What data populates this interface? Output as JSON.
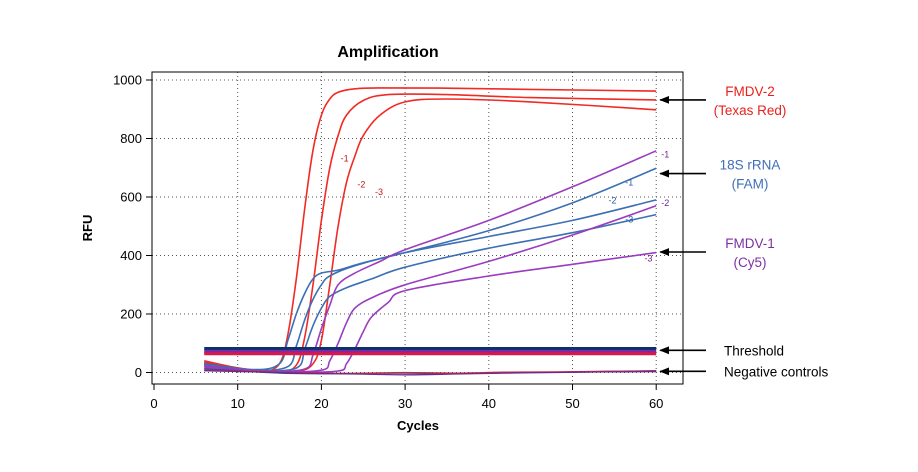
{
  "chart_data": {
    "type": "line",
    "title": "Amplification",
    "xlabel": "Cycles",
    "ylabel": "RFU",
    "xlim": [
      0,
      62
    ],
    "ylim": [
      -40,
      1030
    ],
    "xticks": [
      0,
      10,
      20,
      30,
      40,
      50,
      60
    ],
    "yticks": [
      0,
      200,
      400,
      600,
      800,
      1000
    ],
    "grid": true,
    "series": [
      {
        "name": "FMDV-2 -1",
        "group": "fmdv2",
        "label": "-1",
        "label_at": [
          22.3,
          722
        ],
        "points": [
          [
            6,
            40
          ],
          [
            10,
            15
          ],
          [
            13,
            3
          ],
          [
            15,
            30
          ],
          [
            16,
            130
          ],
          [
            17,
            320
          ],
          [
            18,
            560
          ],
          [
            19,
            760
          ],
          [
            20,
            880
          ],
          [
            21,
            935
          ],
          [
            22,
            958
          ],
          [
            24,
            970
          ],
          [
            27,
            973
          ],
          [
            35,
            972
          ],
          [
            45,
            968
          ],
          [
            60,
            962
          ]
        ]
      },
      {
        "name": "FMDV-2 -2",
        "group": "fmdv2",
        "label": "-2",
        "label_at": [
          24.3,
          632
        ],
        "points": [
          [
            6,
            32
          ],
          [
            11,
            10
          ],
          [
            15,
            2
          ],
          [
            17,
            25
          ],
          [
            18,
            120
          ],
          [
            19,
            300
          ],
          [
            20,
            520
          ],
          [
            21,
            700
          ],
          [
            22,
            810
          ],
          [
            23,
            880
          ],
          [
            25,
            930
          ],
          [
            28,
            950
          ],
          [
            35,
            950
          ],
          [
            45,
            940
          ],
          [
            60,
            932
          ]
        ]
      },
      {
        "name": "FMDV-2 -3",
        "group": "fmdv2",
        "label": "-3",
        "label_at": [
          26.4,
          607
        ],
        "points": [
          [
            6,
            35
          ],
          [
            12,
            8
          ],
          [
            17,
            4
          ],
          [
            19,
            30
          ],
          [
            20,
            110
          ],
          [
            21,
            300
          ],
          [
            22,
            500
          ],
          [
            23,
            650
          ],
          [
            24,
            740
          ],
          [
            25,
            810
          ],
          [
            27,
            880
          ],
          [
            30,
            925
          ],
          [
            35,
            935
          ],
          [
            45,
            925
          ],
          [
            60,
            898
          ]
        ]
      },
      {
        "name": "18S rRNA -1",
        "group": "18s",
        "label": "-1",
        "label_at": [
          56.3,
          640
        ],
        "points": [
          [
            6,
            30
          ],
          [
            12,
            10
          ],
          [
            15,
            30
          ],
          [
            16,
            110
          ],
          [
            17,
            200
          ],
          [
            18,
            270
          ],
          [
            19,
            320
          ],
          [
            20,
            340
          ],
          [
            22,
            350
          ],
          [
            25,
            375
          ],
          [
            30,
            410
          ],
          [
            40,
            485
          ],
          [
            50,
            580
          ],
          [
            60,
            698
          ]
        ]
      },
      {
        "name": "18S rRNA -2",
        "group": "18s",
        "label": "-2",
        "label_at": [
          54.3,
          578
        ],
        "points": [
          [
            6,
            28
          ],
          [
            12,
            8
          ],
          [
            16,
            20
          ],
          [
            17,
            90
          ],
          [
            18,
            180
          ],
          [
            19,
            250
          ],
          [
            20,
            300
          ],
          [
            21,
            330
          ],
          [
            24,
            365
          ],
          [
            30,
            410
          ],
          [
            40,
            465
          ],
          [
            50,
            520
          ],
          [
            60,
            590
          ]
        ]
      },
      {
        "name": "18S rRNA -3",
        "group": "18s",
        "label": "-3",
        "label_at": [
          56.3,
          512
        ],
        "points": [
          [
            6,
            25
          ],
          [
            12,
            6
          ],
          [
            17,
            15
          ],
          [
            18,
            80
          ],
          [
            19,
            160
          ],
          [
            20,
            220
          ],
          [
            21,
            260
          ],
          [
            23,
            290
          ],
          [
            26,
            320
          ],
          [
            30,
            360
          ],
          [
            40,
            425
          ],
          [
            50,
            478
          ],
          [
            60,
            540
          ]
        ]
      },
      {
        "name": "FMDV-1 -1",
        "group": "fmdv1",
        "label": "-1",
        "label_at": [
          60.6,
          735
        ],
        "points": [
          [
            6,
            22
          ],
          [
            13,
            4
          ],
          [
            18,
            12
          ],
          [
            19,
            60
          ],
          [
            20,
            150
          ],
          [
            21,
            230
          ],
          [
            22,
            300
          ],
          [
            24,
            340
          ],
          [
            27,
            380
          ],
          [
            30,
            420
          ],
          [
            40,
            520
          ],
          [
            50,
            635
          ],
          [
            60,
            758
          ]
        ]
      },
      {
        "name": "FMDV-1 -2",
        "group": "fmdv1",
        "label": "-2",
        "label_at": [
          60.6,
          570
        ],
        "points": [
          [
            6,
            20
          ],
          [
            14,
            3
          ],
          [
            20,
            8
          ],
          [
            21,
            40
          ],
          [
            22,
            100
          ],
          [
            23,
            170
          ],
          [
            24,
            220
          ],
          [
            26,
            255
          ],
          [
            30,
            300
          ],
          [
            40,
            380
          ],
          [
            50,
            470
          ],
          [
            60,
            570
          ]
        ]
      },
      {
        "name": "FMDV-1 -3",
        "group": "fmdv1",
        "label": "-3",
        "label_at": [
          58.6,
          380
        ],
        "points": [
          [
            6,
            15
          ],
          [
            16,
            2
          ],
          [
            22,
            5
          ],
          [
            23,
            30
          ],
          [
            24,
            80
          ],
          [
            25,
            140
          ],
          [
            26,
            190
          ],
          [
            28,
            240
          ],
          [
            30,
            280
          ],
          [
            40,
            330
          ],
          [
            50,
            370
          ],
          [
            60,
            410
          ]
        ]
      },
      {
        "name": "Threshold 18S",
        "group": "threshold_blue",
        "points": [
          [
            6,
            82
          ],
          [
            60,
            82
          ]
        ]
      },
      {
        "name": "Threshold FMDV-1",
        "group": "threshold_purple",
        "points": [
          [
            6,
            72
          ],
          [
            60,
            72
          ]
        ]
      },
      {
        "name": "Threshold FMDV-2",
        "group": "threshold_red",
        "points": [
          [
            6,
            64
          ],
          [
            60,
            64
          ]
        ]
      },
      {
        "name": "Negative control 1",
        "group": "neg_blue",
        "points": [
          [
            6,
            12
          ],
          [
            10,
            6
          ],
          [
            15,
            -2
          ],
          [
            20,
            -4
          ],
          [
            25,
            -3
          ],
          [
            30,
            -2
          ],
          [
            35,
            -4
          ],
          [
            40,
            -2
          ],
          [
            45,
            0
          ],
          [
            50,
            1
          ],
          [
            55,
            4
          ],
          [
            60,
            6
          ]
        ]
      },
      {
        "name": "Negative control 2",
        "group": "neg_red",
        "points": [
          [
            6,
            8
          ],
          [
            12,
            4
          ],
          [
            18,
            -1
          ],
          [
            24,
            -3
          ],
          [
            30,
            0
          ],
          [
            36,
            -2
          ],
          [
            42,
            1
          ],
          [
            48,
            2
          ],
          [
            54,
            4
          ],
          [
            60,
            5
          ]
        ]
      },
      {
        "name": "Negative control 3",
        "group": "neg_purple",
        "points": [
          [
            6,
            6
          ],
          [
            12,
            2
          ],
          [
            18,
            -3
          ],
          [
            24,
            -5
          ],
          [
            30,
            -8
          ],
          [
            36,
            -5
          ],
          [
            42,
            -2
          ],
          [
            48,
            0
          ],
          [
            54,
            2
          ],
          [
            60,
            3
          ]
        ]
      }
    ],
    "annotations": [
      {
        "id": "fmdv2",
        "lines": [
          "FMDV-2",
          "(Texas Red)"
        ],
        "color": "#e8211d",
        "target": [
          60,
          932
        ]
      },
      {
        "id": "18s",
        "lines": [
          "18S rRNA",
          "(FAM)"
        ],
        "color": "#3f6fb5",
        "target": [
          60,
          680
        ]
      },
      {
        "id": "fmdv1",
        "lines": [
          "FMDV-1",
          "(Cy5)"
        ],
        "color": "#7d2fa6",
        "target": [
          60,
          412
        ]
      },
      {
        "id": "threshold",
        "lines": [
          "Threshold"
        ],
        "color": "#000000",
        "target": [
          60,
          76
        ]
      },
      {
        "id": "negatives",
        "lines": [
          "Negative controls"
        ],
        "color": "#000000",
        "target": [
          60,
          4
        ]
      }
    ]
  },
  "colors": {
    "fmdv2": "#f02a24",
    "18s": "#3c6fb4",
    "fmdv1": "#9b3cbf",
    "threshold_blue": "#0d2f6e",
    "threshold_purple": "#7b2aa0",
    "threshold_red": "#d8174a",
    "neg_blue": "#2c4f9c",
    "neg_red": "#c92a3a",
    "neg_purple": "#6a2a92",
    "label_fmdv2": "#c0141a",
    "label_18s": "#2a5aa0",
    "label_fmdv1": "#6f2390"
  }
}
